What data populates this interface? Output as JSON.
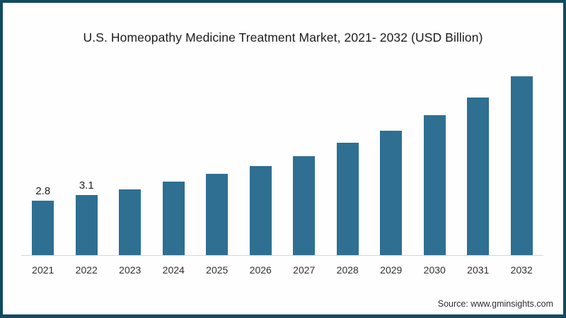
{
  "frame": {
    "background": "#fefefe",
    "border_color": "#114b61"
  },
  "chart_data": {
    "type": "bar",
    "title": "U.S. Homeopathy Medicine Treatment Market, 2021- 2032 (USD Billion)",
    "categories": [
      "2021",
      "2022",
      "2023",
      "2024",
      "2025",
      "2026",
      "2027",
      "2028",
      "2029",
      "2030",
      "2031",
      "2032"
    ],
    "values": [
      2.8,
      3.1,
      3.4,
      3.8,
      4.2,
      4.6,
      5.1,
      5.8,
      6.4,
      7.2,
      8.1,
      9.2
    ],
    "value_labels": [
      "2.8",
      "3.1",
      "",
      "",
      "",
      "",
      "",
      "",
      "",
      "",
      "",
      ""
    ],
    "xlabel": "",
    "ylabel": "",
    "ylim": [
      0,
      10
    ],
    "grid": false,
    "legend": "none",
    "bar_color": "#2e6f92",
    "axis_line_color": "#d6d6d6",
    "label_color": "#1f1f1f",
    "tick_label_color": "#303030"
  },
  "source": {
    "text": "Source: www.gminsights.com"
  }
}
